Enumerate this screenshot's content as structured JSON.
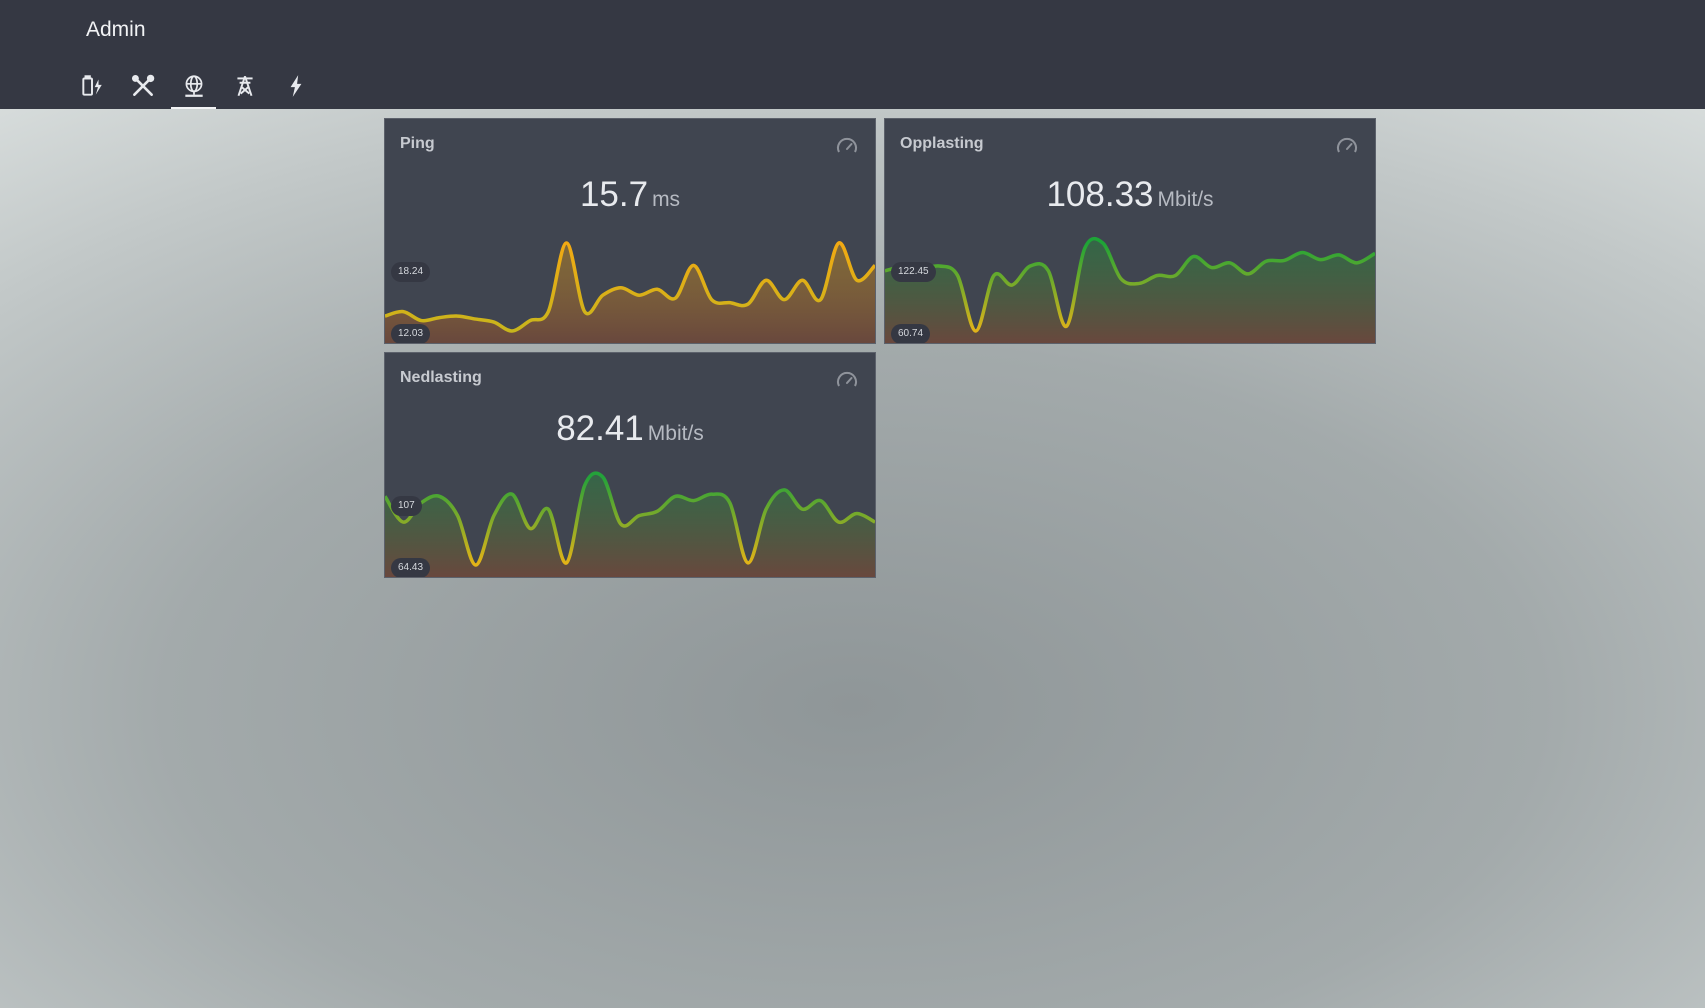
{
  "app": {
    "title": "Admin"
  },
  "nav": {
    "tabs": [
      {
        "icon": "battery-charging-icon",
        "active": false
      },
      {
        "icon": "tools-icon",
        "active": false
      },
      {
        "icon": "network-globe-icon",
        "active": true
      },
      {
        "icon": "transmission-tower-icon",
        "active": false
      },
      {
        "icon": "lightning-bolt-icon",
        "active": false
      }
    ]
  },
  "cards": [
    {
      "title": "Ping",
      "value": "15.7",
      "unit": "ms",
      "max_label": "18.24",
      "min_label": "12.03",
      "icon": "speedometer-icon",
      "line_colors": [
        "#c8b51c",
        "#f2a913"
      ],
      "series": [
        13.2,
        13.5,
        12.9,
        13.1,
        13.2,
        13.0,
        12.8,
        12.2,
        12.9,
        13.5,
        18.1,
        13.5,
        14.6,
        15.1,
        14.6,
        15.0,
        14.4,
        16.6,
        14.3,
        14.1,
        14.0,
        15.6,
        14.3,
        15.6,
        14.3,
        18.1,
        15.6,
        16.6
      ]
    },
    {
      "title": "Opplasting",
      "value": "108.33",
      "unit": "Mbit/s",
      "max_label": "122.45",
      "min_label": "60.74",
      "icon": "speedometer-icon",
      "line_colors": [
        "#e0b31a",
        "#1ea437"
      ],
      "series": [
        104.0,
        106.5,
        105.0,
        107.0,
        101.0,
        66.0,
        101.0,
        95.0,
        107.0,
        104.0,
        69.0,
        118.0,
        121.5,
        99.0,
        96.0,
        101.0,
        101.0,
        113.0,
        106.0,
        109.0,
        102.0,
        110.0,
        110.5,
        115.5,
        111.0,
        114.0,
        109.0,
        115.0
      ]
    },
    {
      "title": "Nedlasting",
      "value": "82.41",
      "unit": "Mbit/s",
      "max_label": "107",
      "min_label": "64.43",
      "icon": "speedometer-icon",
      "line_colors": [
        "#e5b417",
        "#24a23a"
      ],
      "series": [
        98.0,
        86.0,
        95.0,
        98.0,
        89.0,
        66.0,
        89.0,
        99.0,
        83.0,
        92.0,
        67.0,
        103.0,
        107.0,
        85.0,
        89.0,
        91.0,
        98.0,
        96.0,
        99.0,
        95.0,
        67.0,
        92.0,
        101.0,
        92.0,
        96.0,
        86.0,
        90.0,
        86.0
      ]
    }
  ]
}
